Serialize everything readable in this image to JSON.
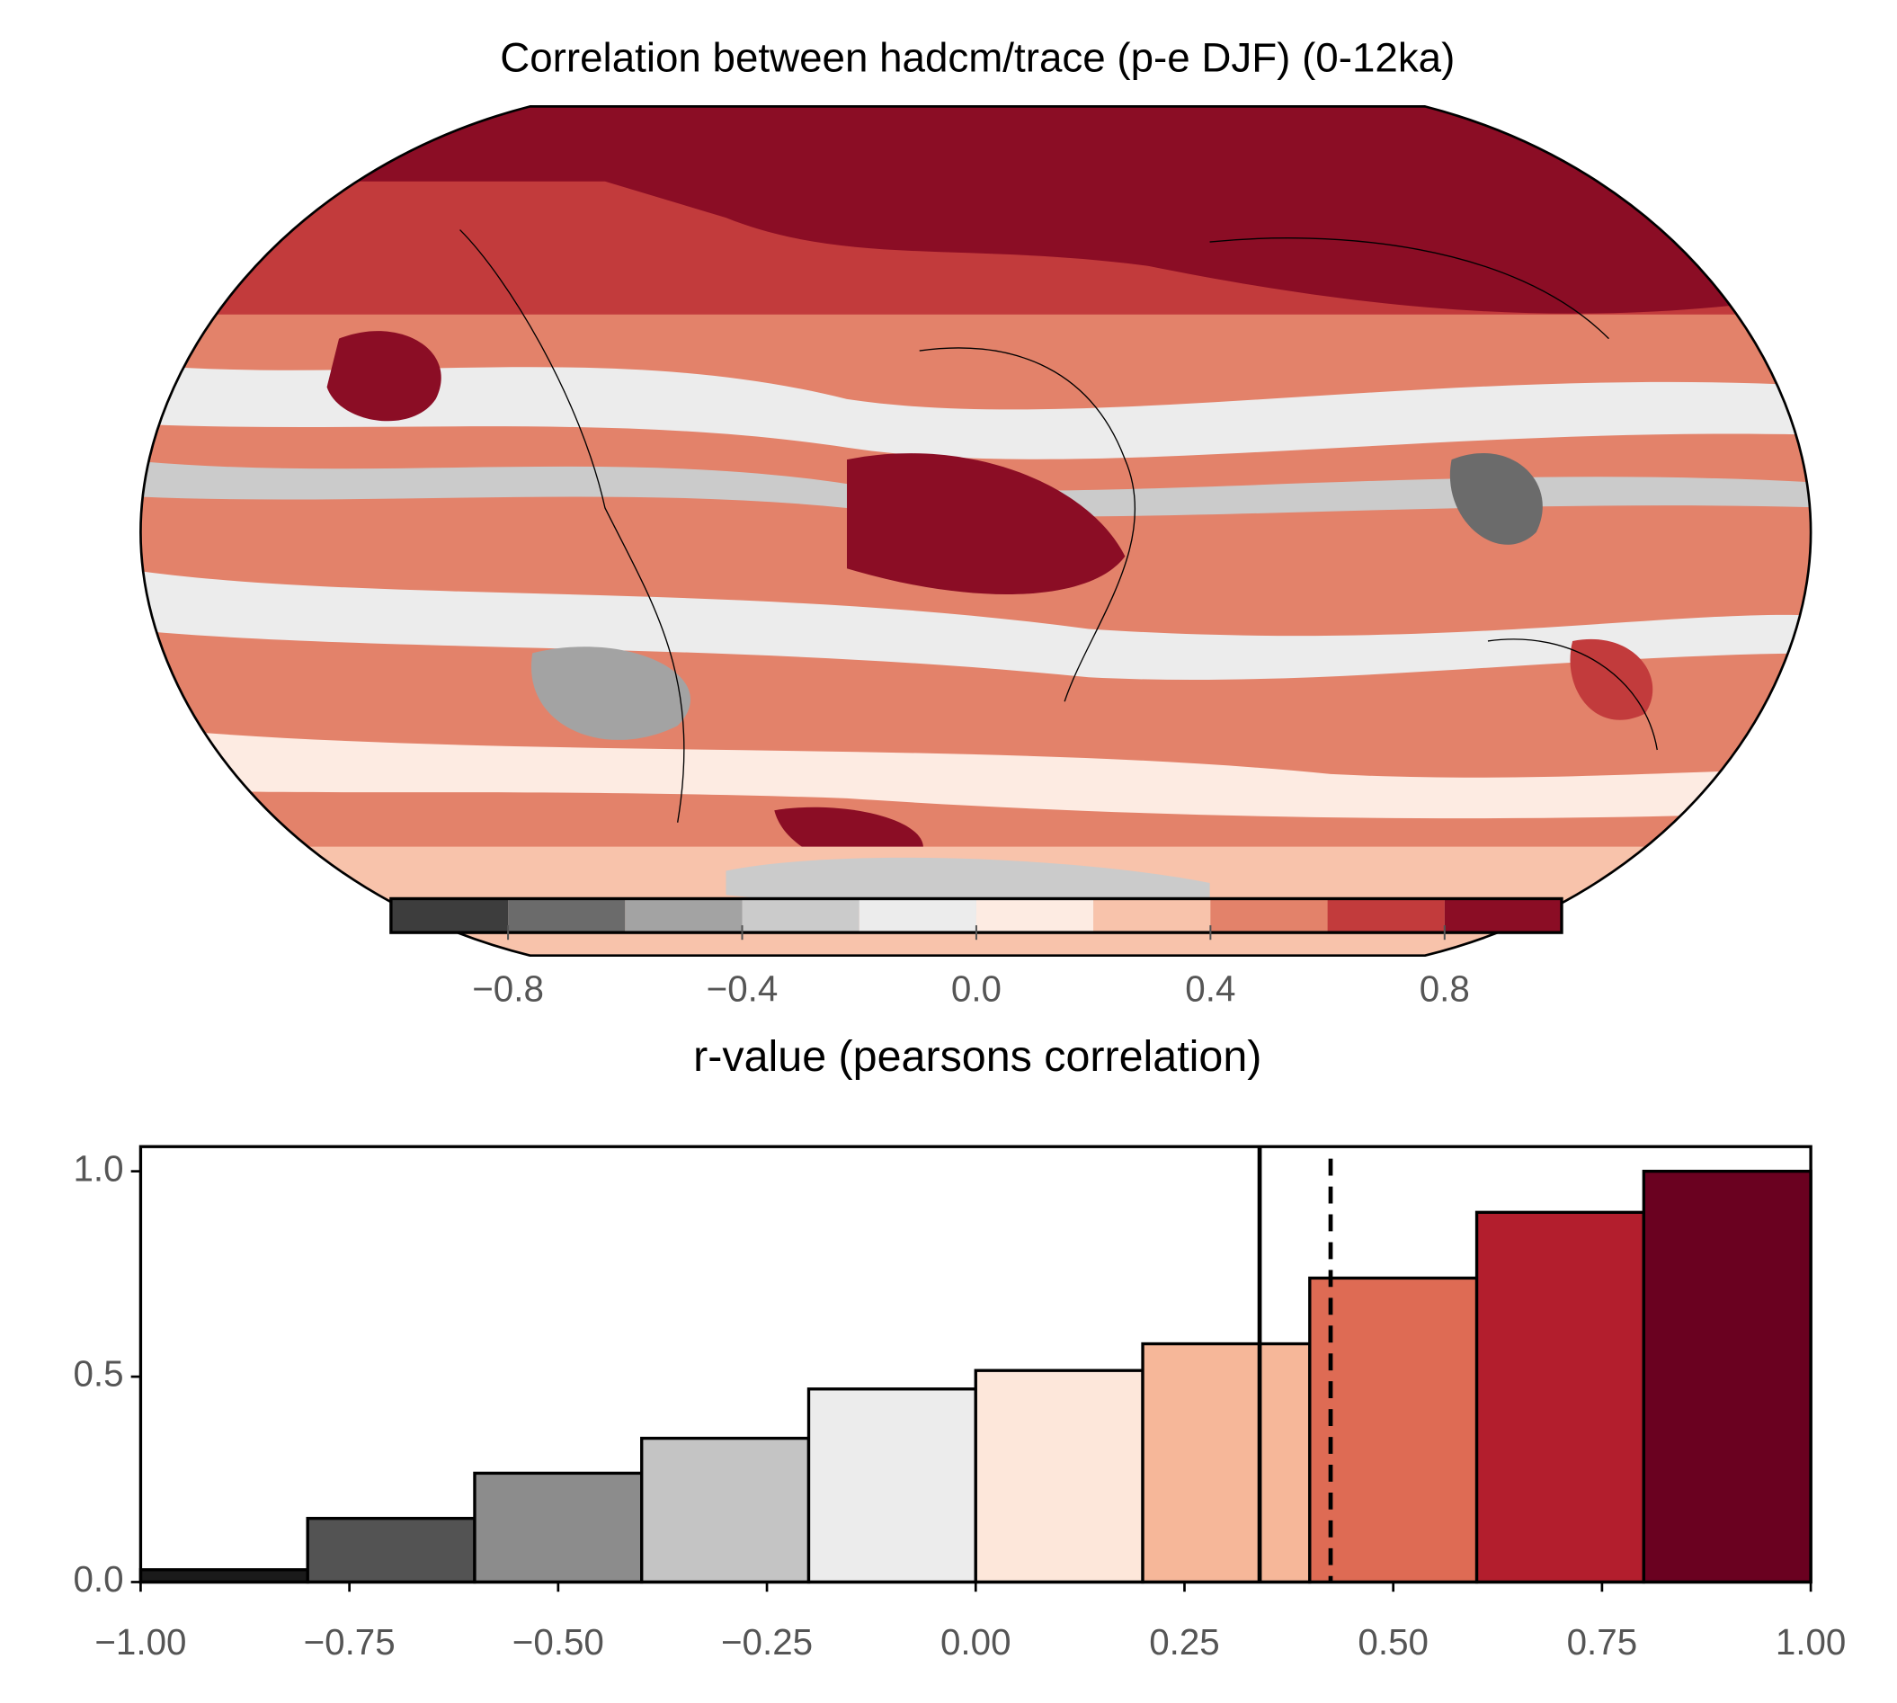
{
  "chart_data": [
    {
      "type": "map",
      "title": "Correlation between hadcm/trace (p-e DJF) (0-12ka)",
      "colorbar": {
        "label": "r-value (pearsons correlation)",
        "levels": [
          -1,
          -0.8,
          -0.6,
          -0.4,
          -0.2,
          0,
          0.2,
          0.4,
          0.6,
          0.8,
          1
        ],
        "colors": [
          "#3d3d3d",
          "#6b6b6b",
          "#a3a3a3",
          "#cbcbcb",
          "#ececec",
          "#fdebe2",
          "#f8c3ab",
          "#e3826a",
          "#c23b3c",
          "#8b0d25"
        ],
        "ticks": [
          {
            "value": -0.8,
            "label": "−0.8"
          },
          {
            "value": -0.4,
            "label": "−0.4"
          },
          {
            "value": 0,
            "label": "0.0"
          },
          {
            "value": 0.4,
            "label": "0.4"
          },
          {
            "value": 0.8,
            "label": "0.8"
          }
        ]
      }
    },
    {
      "type": "histogram",
      "bins": [
        -1,
        -0.8,
        -0.6,
        -0.4,
        -0.2,
        0,
        0.2,
        0.4,
        0.6,
        0.8,
        1
      ],
      "values": [
        0.03,
        0.155,
        0.265,
        0.35,
        0.47,
        0.515,
        0.58,
        0.74,
        0.9,
        1.0
      ],
      "colors": [
        "#1a1a1a",
        "#535353",
        "#8c8c8c",
        "#c4c4c4",
        "#ececec",
        "#fde7da",
        "#f6b799",
        "#de6b54",
        "#b31e2d",
        "#6a0120"
      ],
      "xlim": [
        -1,
        1
      ],
      "ylim": [
        0,
        1.06
      ],
      "xticks": [
        {
          "value": -1,
          "label": "−1.00"
        },
        {
          "value": -0.75,
          "label": "−0.75"
        },
        {
          "value": -0.5,
          "label": "−0.50"
        },
        {
          "value": -0.25,
          "label": "−0.25"
        },
        {
          "value": 0,
          "label": "0.00"
        },
        {
          "value": 0.25,
          "label": "0.25"
        },
        {
          "value": 0.5,
          "label": "0.50"
        },
        {
          "value": 0.75,
          "label": "0.75"
        },
        {
          "value": 1,
          "label": "1.00"
        }
      ],
      "yticks": [
        {
          "value": 0,
          "label": "0.0"
        },
        {
          "value": 0.5,
          "label": "0.5"
        },
        {
          "value": 1,
          "label": "1.0"
        }
      ],
      "vlines": [
        {
          "x": 0.34,
          "style": "solid"
        },
        {
          "x": 0.425,
          "style": "dashed"
        }
      ]
    }
  ]
}
